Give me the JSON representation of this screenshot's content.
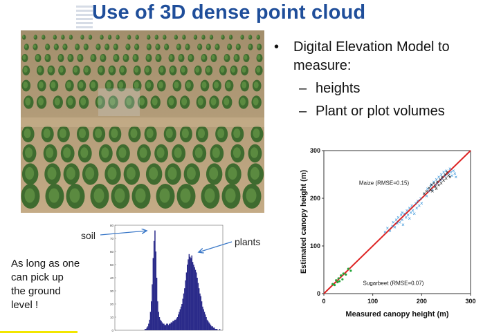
{
  "slide": {
    "title": "Use of 3D dense point cloud",
    "bullet_main": "Digital Elevation Model to measure:",
    "sub_items": [
      "heights",
      "Plant or plot volumes"
    ],
    "note": "As long as one\ncan pick up\nthe ground\nlevel !",
    "soil_label": "soil",
    "plants_label": "plants",
    "accent_color": "#1f4e9a"
  },
  "chart_data": [
    {
      "type": "scatter",
      "xlabel": "Measured canopy height (m)",
      "ylabel": "Estimated canopy height (m)",
      "xlim": [
        0,
        300
      ],
      "ylim": [
        0,
        300
      ],
      "xticks": [
        0,
        100,
        200,
        300
      ],
      "yticks": [
        0,
        100,
        200,
        300
      ],
      "annotations": [
        "Maize (RMSE=0.15)",
        "Sugarbeet (RMSE=0.07)"
      ],
      "reference_line": [
        [
          0,
          0
        ],
        [
          300,
          300
        ]
      ],
      "series": [
        {
          "color": "#2f8fd8",
          "marker": "x",
          "points": [
            [
              125,
              130
            ],
            [
              130,
              138
            ],
            [
              135,
              132
            ],
            [
              140,
              142
            ],
            [
              142,
              150
            ],
            [
              145,
              140
            ],
            [
              148,
              155
            ],
            [
              150,
              148
            ],
            [
              152,
              160
            ],
            [
              155,
              150
            ],
            [
              158,
              165
            ],
            [
              160,
              155
            ],
            [
              160,
              170
            ],
            [
              162,
              145
            ],
            [
              165,
              168
            ],
            [
              168,
              160
            ],
            [
              170,
              175
            ],
            [
              172,
              165
            ],
            [
              175,
              180
            ],
            [
              175,
              158
            ],
            [
              178,
              170
            ],
            [
              180,
              185
            ],
            [
              182,
              175
            ],
            [
              185,
              168
            ],
            [
              188,
              190
            ],
            [
              190,
              180
            ],
            [
              192,
              195
            ],
            [
              195,
              185
            ],
            [
              198,
              200
            ],
            [
              200,
              190
            ],
            [
              205,
              210
            ],
            [
              210,
              205
            ],
            [
              212,
              220
            ],
            [
              215,
              215
            ],
            [
              218,
              225
            ],
            [
              220,
              230
            ],
            [
              222,
              218
            ],
            [
              225,
              235
            ],
            [
              228,
              228
            ],
            [
              230,
              240
            ],
            [
              232,
              232
            ],
            [
              235,
              245
            ],
            [
              238,
              238
            ],
            [
              240,
              250
            ],
            [
              242,
              242
            ],
            [
              245,
              255
            ],
            [
              248,
              248
            ],
            [
              250,
              258
            ],
            [
              255,
              252
            ],
            [
              258,
              262
            ],
            [
              260,
              255
            ],
            [
              262,
              248
            ],
            [
              265,
              258
            ],
            [
              268,
              252
            ],
            [
              270,
              245
            ]
          ]
        },
        {
          "color": "#111111",
          "marker": "x",
          "points": [
            [
              205,
              210
            ],
            [
              210,
              215
            ],
            [
              215,
              222
            ],
            [
              218,
              218
            ],
            [
              220,
              228
            ],
            [
              222,
              215
            ],
            [
              225,
              232
            ],
            [
              228,
              225
            ],
            [
              230,
              220
            ],
            [
              232,
              235
            ],
            [
              235,
              228
            ],
            [
              238,
              240
            ],
            [
              240,
              232
            ],
            [
              242,
              245
            ],
            [
              245,
              238
            ],
            [
              248,
              250
            ],
            [
              250,
              242
            ],
            [
              252,
              255
            ],
            [
              255,
              248
            ],
            [
              258,
              245
            ]
          ]
        },
        {
          "color": "#22a63a",
          "marker": "dot",
          "points": [
            [
              18,
              20
            ],
            [
              22,
              18
            ],
            [
              25,
              28
            ],
            [
              28,
              24
            ],
            [
              30,
              32
            ],
            [
              32,
              26
            ],
            [
              35,
              38
            ],
            [
              38,
              30
            ],
            [
              40,
              42
            ],
            [
              45,
              40
            ],
            [
              50,
              52
            ],
            [
              55,
              48
            ]
          ]
        }
      ]
    },
    {
      "type": "bar",
      "yticks": [
        0,
        10,
        20,
        30,
        40,
        50,
        60,
        70,
        80
      ],
      "ylim": [
        0,
        80
      ],
      "color": "#2b2b8a",
      "values": [
        0,
        0,
        0,
        0,
        0,
        0,
        0,
        0,
        0,
        0,
        0,
        0,
        0,
        0,
        0,
        0,
        0,
        0,
        0,
        0,
        0,
        0,
        0,
        0,
        0,
        0,
        0,
        0,
        0,
        0,
        0,
        0,
        0,
        1,
        1,
        2,
        3,
        5,
        8,
        14,
        22,
        35,
        55,
        68,
        76,
        60,
        40,
        22,
        14,
        10,
        8,
        7,
        6,
        5,
        5,
        4,
        4,
        5,
        5,
        4,
        5,
        5,
        6,
        6,
        7,
        7,
        8,
        8,
        9,
        10,
        12,
        14,
        16,
        18,
        20,
        24,
        28,
        32,
        38,
        44,
        50,
        54,
        58,
        56,
        55,
        57,
        52,
        50,
        48,
        46,
        44,
        40,
        36,
        32,
        28,
        26,
        22,
        18,
        16,
        14,
        12,
        10,
        8,
        7,
        6,
        5,
        4,
        3,
        3,
        2,
        2,
        1,
        1,
        1,
        0,
        0,
        1,
        0,
        0,
        0
      ]
    }
  ]
}
